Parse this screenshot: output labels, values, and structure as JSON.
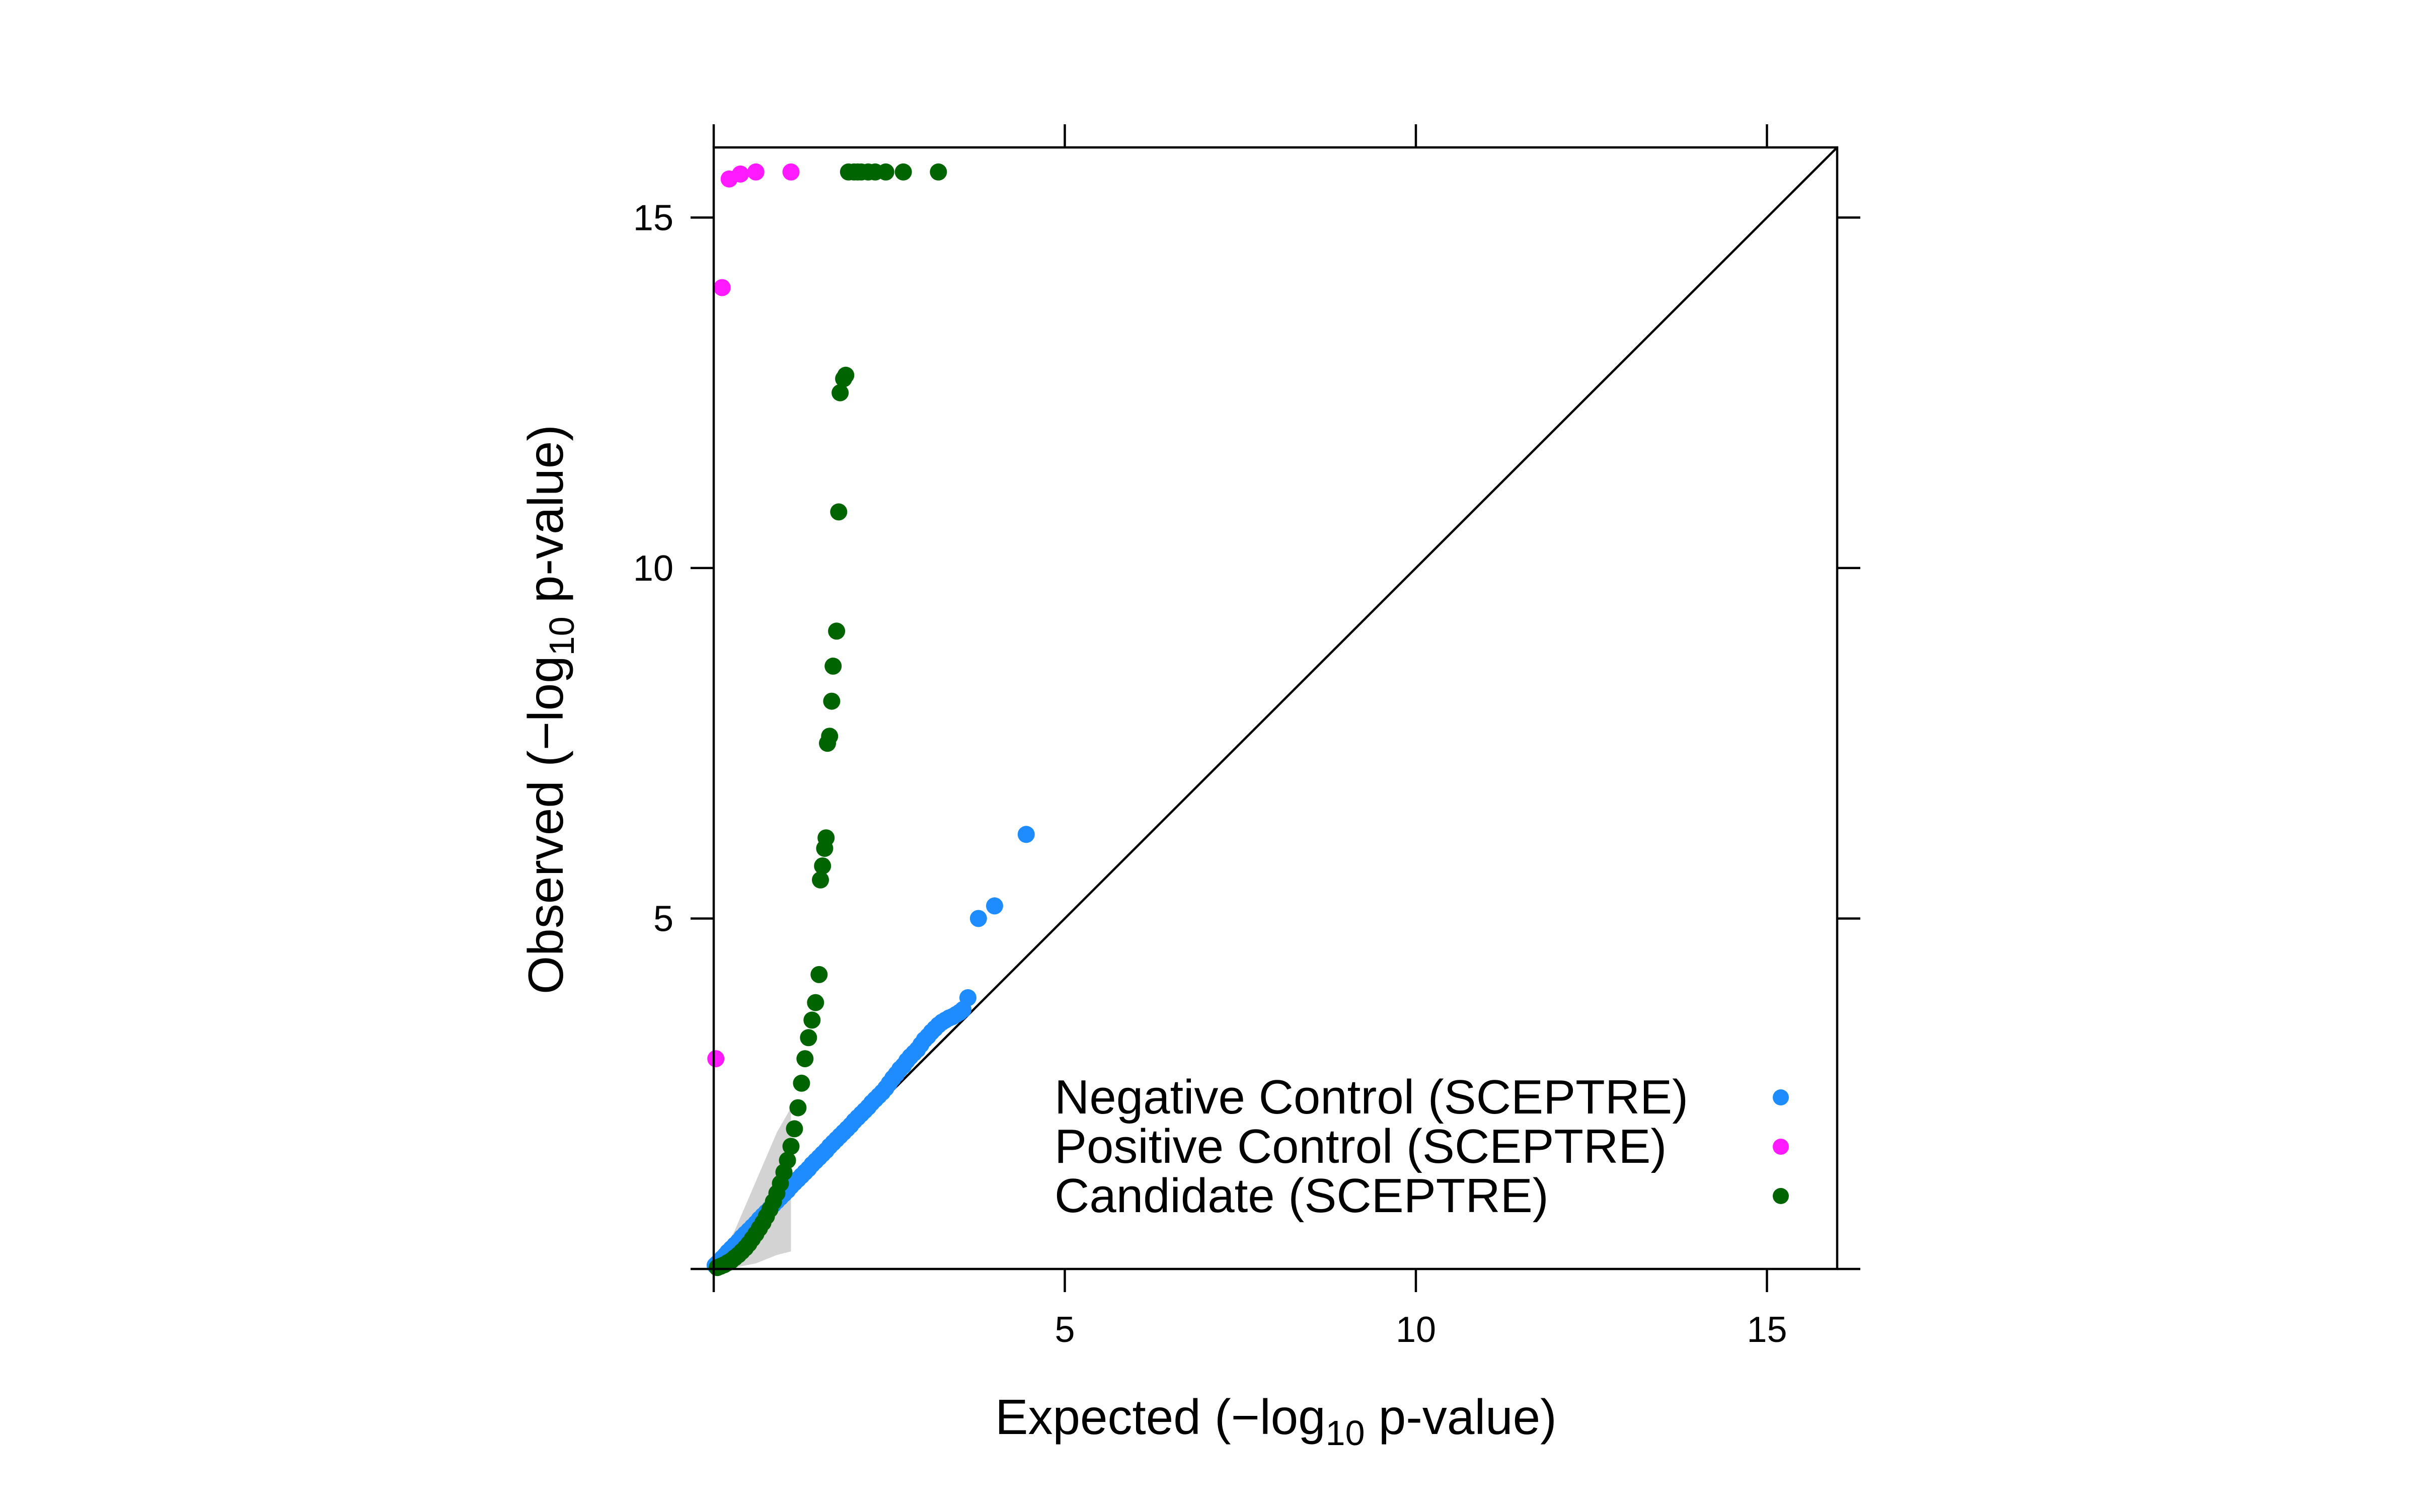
{
  "chart_data": {
    "type": "scatter",
    "title": "",
    "xlabel": {
      "prefix": "Expected (−log",
      "sub": "10",
      "suffix": " p-value)"
    },
    "ylabel": {
      "prefix": "Observed (−log",
      "sub": "10",
      "suffix": " p-value)"
    },
    "xlim": [
      0,
      16
    ],
    "ylim": [
      0,
      16
    ],
    "xticks": [
      5,
      10,
      15
    ],
    "yticks": [
      5,
      10,
      15
    ],
    "reference_line": "y = x",
    "grid": false,
    "legend_position": "bottom-right",
    "confidence_band": {
      "x": [
        0.0,
        0.3,
        0.6,
        0.9,
        1.1,
        1.1,
        0.9,
        0.6,
        0.3,
        0.0
      ],
      "y": [
        0.0,
        0.55,
        1.25,
        1.95,
        2.3,
        0.25,
        0.2,
        0.08,
        0.02,
        0.0
      ]
    },
    "series": [
      {
        "name": "Negative Control (SCEPTRE)",
        "color": "#1E8CFF",
        "x": [
          0.02,
          0.05,
          0.08,
          0.12,
          0.16,
          0.2,
          0.25,
          0.3,
          0.35,
          0.4,
          0.45,
          0.5,
          0.55,
          0.6,
          0.65,
          0.7,
          0.75,
          0.8,
          0.85,
          0.9,
          0.95,
          1.0,
          1.05,
          1.1,
          1.15,
          1.2,
          1.25,
          1.3,
          1.35,
          1.4,
          1.45,
          1.5,
          1.55,
          1.6,
          1.65,
          1.7,
          1.75,
          1.8,
          1.85,
          1.9,
          1.95,
          2.0,
          2.05,
          2.1,
          2.15,
          2.2,
          2.25,
          2.3,
          2.35,
          2.4,
          2.45,
          2.5,
          2.55,
          2.6,
          2.65,
          2.7,
          2.75,
          2.8,
          2.85,
          2.9,
          2.95,
          3.0,
          3.05,
          3.1,
          3.15,
          3.2,
          3.25,
          3.3,
          3.35,
          3.4,
          3.45,
          3.5,
          3.55,
          3.62,
          3.77,
          4.0,
          4.45
        ],
        "y": [
          0.05,
          0.08,
          0.1,
          0.15,
          0.19,
          0.24,
          0.29,
          0.34,
          0.39,
          0.45,
          0.5,
          0.55,
          0.6,
          0.65,
          0.71,
          0.76,
          0.81,
          0.86,
          0.92,
          0.97,
          1.02,
          1.07,
          1.12,
          1.18,
          1.23,
          1.28,
          1.33,
          1.38,
          1.43,
          1.49,
          1.54,
          1.59,
          1.64,
          1.69,
          1.75,
          1.8,
          1.85,
          1.9,
          1.95,
          2.0,
          2.05,
          2.11,
          2.16,
          2.21,
          2.26,
          2.31,
          2.37,
          2.42,
          2.47,
          2.52,
          2.58,
          2.65,
          2.72,
          2.78,
          2.85,
          2.9,
          2.97,
          3.03,
          3.08,
          3.13,
          3.2,
          3.27,
          3.32,
          3.38,
          3.43,
          3.48,
          3.52,
          3.55,
          3.58,
          3.6,
          3.63,
          3.66,
          3.7,
          3.87,
          5.0,
          5.18,
          6.2
        ]
      },
      {
        "name": "Positive Control (SCEPTRE)",
        "color": "#FF1AFF",
        "x": [
          0.03,
          0.12,
          0.22,
          0.38,
          0.6,
          1.1
        ],
        "y": [
          3.0,
          14.0,
          15.55,
          15.62,
          15.65,
          15.65
        ]
      },
      {
        "name": "Candidate (SCEPTRE)",
        "color": "#006400",
        "x": [
          0.05,
          0.1,
          0.15,
          0.2,
          0.25,
          0.3,
          0.35,
          0.4,
          0.45,
          0.5,
          0.55,
          0.6,
          0.65,
          0.7,
          0.75,
          0.8,
          0.85,
          0.9,
          0.95,
          1.0,
          1.05,
          1.1,
          1.15,
          1.2,
          1.25,
          1.3,
          1.35,
          1.4,
          1.45,
          1.5,
          1.52,
          1.55,
          1.58,
          1.6,
          1.62,
          1.65,
          1.68,
          1.7,
          1.75,
          1.78,
          1.8,
          1.85,
          1.88,
          1.92,
          2.0,
          2.05,
          2.1,
          2.2,
          2.3,
          2.45,
          2.7,
          3.2
        ],
        "y": [
          0.02,
          0.04,
          0.06,
          0.09,
          0.12,
          0.16,
          0.2,
          0.25,
          0.3,
          0.36,
          0.43,
          0.5,
          0.58,
          0.66,
          0.75,
          0.85,
          0.96,
          1.08,
          1.22,
          1.38,
          1.55,
          1.75,
          2.0,
          2.3,
          2.65,
          3.0,
          3.3,
          3.55,
          3.8,
          4.2,
          5.55,
          5.75,
          6.0,
          6.15,
          7.5,
          7.6,
          8.1,
          8.6,
          9.1,
          10.8,
          12.5,
          12.7,
          12.75,
          15.65,
          15.65,
          15.65,
          15.65,
          15.65,
          15.65,
          15.65,
          15.65,
          15.65
        ]
      }
    ]
  }
}
